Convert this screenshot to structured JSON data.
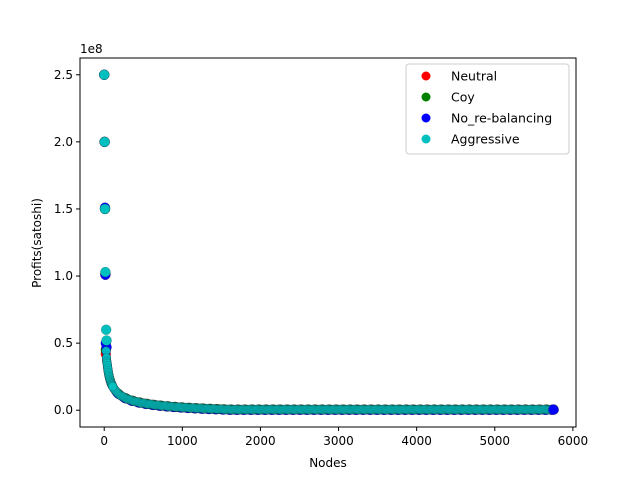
{
  "chart_data": {
    "type": "scatter",
    "title": "",
    "xlabel": "Nodes",
    "ylabel": "Profits(satoshi)",
    "y_multiplier_label": "1e8",
    "xlim": [
      -310,
      6040
    ],
    "ylim": [
      -0.125,
      2.625
    ],
    "xticks": [
      0,
      1000,
      2000,
      3000,
      4000,
      5000,
      6000
    ],
    "yticks": [
      0.0,
      0.5,
      1.0,
      1.5,
      2.0,
      2.5
    ],
    "xtick_labels": [
      "0",
      "1000",
      "2000",
      "3000",
      "4000",
      "5000",
      "6000"
    ],
    "ytick_labels": [
      "0.0",
      "0.5",
      "1.0",
      "1.5",
      "2.0",
      "2.5"
    ],
    "grid": false,
    "legend_position": "top-right",
    "max_node": 5760,
    "series": [
      {
        "name": "Neutral",
        "color": "#ff0000",
        "outliers": [
          [
            0,
            2.5
          ],
          [
            5,
            2.0
          ],
          [
            10,
            1.5
          ],
          [
            15,
            1.01
          ],
          [
            20,
            0.42
          ]
        ]
      },
      {
        "name": "Coy",
        "color": "#008000",
        "outliers": [
          [
            0,
            2.5
          ],
          [
            5,
            2.0
          ],
          [
            10,
            1.5
          ],
          [
            15,
            1.02
          ],
          [
            20,
            0.45
          ]
        ]
      },
      {
        "name": "No_re-balancing",
        "color": "#0000ff",
        "outliers": [
          [
            0,
            2.5
          ],
          [
            5,
            2.0
          ],
          [
            10,
            1.51
          ],
          [
            15,
            1.01
          ],
          [
            20,
            0.5
          ],
          [
            30,
            0.47
          ]
        ]
      },
      {
        "name": "Aggressive",
        "color": "#00bfbf",
        "outliers": [
          [
            0,
            2.5
          ],
          [
            5,
            2.0
          ],
          [
            10,
            1.5
          ],
          [
            15,
            1.03
          ],
          [
            25,
            0.6
          ],
          [
            30,
            0.52
          ]
        ]
      }
    ]
  }
}
